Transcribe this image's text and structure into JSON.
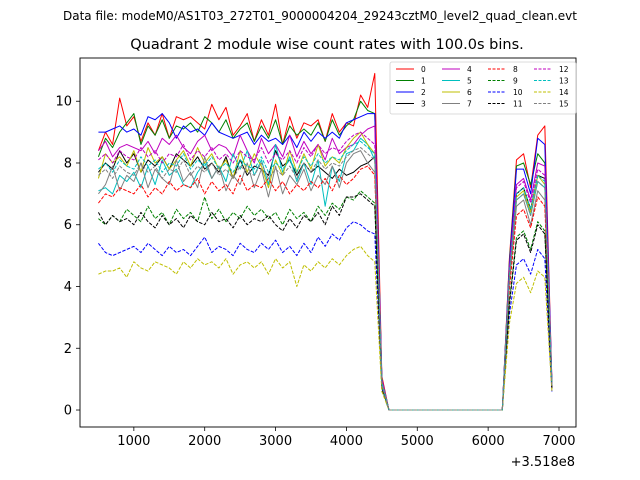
{
  "header": {
    "data_file": "Data file: modeM0/AS1T03_272T01_9000004204_29243cztM0_level2_quad_clean.evt"
  },
  "chart_data": {
    "type": "line",
    "title": "Quadrant 2 module wise count rates with 100.0s bins.",
    "xlabel": "",
    "ylabel": "",
    "x_offset_label": "+3.518e8",
    "xlim": [
      240,
      7240
    ],
    "ylim": [
      -0.55,
      11.4
    ],
    "x_ticks": [
      1000,
      2000,
      3000,
      4000,
      5000,
      6000,
      7000
    ],
    "x_tick_labels": [
      "1000",
      "2000",
      "3000",
      "4000",
      "5000",
      "6000",
      "7000"
    ],
    "y_ticks": [
      0,
      2,
      4,
      6,
      8,
      10
    ],
    "y_tick_labels": [
      "0",
      "2",
      "4",
      "6",
      "8",
      "10"
    ],
    "grid": false,
    "legend_position": "top-right",
    "legend_columns": 4,
    "x": [
      500,
      600,
      700,
      800,
      900,
      1000,
      1100,
      1200,
      1300,
      1400,
      1500,
      1600,
      1700,
      1800,
      1900,
      2000,
      2100,
      2200,
      2300,
      2400,
      2500,
      2600,
      2700,
      2800,
      2900,
      3000,
      3100,
      3200,
      3300,
      3400,
      3500,
      3600,
      3700,
      3800,
      3900,
      4000,
      4100,
      4200,
      4300,
      4400,
      4500,
      4600,
      4700,
      4800,
      4900,
      5000,
      5100,
      5200,
      5300,
      5400,
      5500,
      5600,
      5700,
      5800,
      5900,
      6000,
      6100,
      6200,
      6300,
      6400,
      6500,
      6600,
      6700,
      6800,
      6900
    ],
    "series": [
      {
        "name": "0",
        "color": "#ff0000",
        "dash": "solid",
        "values": [
          8.4,
          9.0,
          8.6,
          10.1,
          9.2,
          9.5,
          8.7,
          9.3,
          8.9,
          9.6,
          8.8,
          9.5,
          9.4,
          9.5,
          9.3,
          9.1,
          9.9,
          9.4,
          9.8,
          8.9,
          9.2,
          9.6,
          8.7,
          9.4,
          8.9,
          9.9,
          8.6,
          9.5,
          8.8,
          9.3,
          9.2,
          9.4,
          8.7,
          9.6,
          9.0,
          9.3,
          9.2,
          10.2,
          9.8,
          10.9,
          1.1,
          0,
          0,
          0,
          0,
          0,
          0,
          0,
          0,
          0,
          0,
          0,
          0,
          0,
          0,
          0,
          0,
          0,
          4.9,
          8.1,
          8.3,
          7.2,
          8.9,
          9.2,
          0.9
        ]
      },
      {
        "name": "1",
        "color": "#008000",
        "dash": "solid",
        "values": [
          8.2,
          8.8,
          8.5,
          9.0,
          9.3,
          9.6,
          8.6,
          9.2,
          8.9,
          9.4,
          8.8,
          9.2,
          9.1,
          9.3,
          9.0,
          9.5,
          9.3,
          9.0,
          9.4,
          8.8,
          9.1,
          9.3,
          8.7,
          9.2,
          8.8,
          9.4,
          8.6,
          9.2,
          8.9,
          9.1,
          8.9,
          9.3,
          8.7,
          9.4,
          8.9,
          9.2,
          9.4,
          10.0,
          9.7,
          9.6,
          1.0,
          0,
          0,
          0,
          0,
          0,
          0,
          0,
          0,
          0,
          0,
          0,
          0,
          0,
          0,
          0,
          0,
          0,
          4.8,
          7.9,
          8.0,
          7.3,
          8.3,
          8.0,
          0.8
        ]
      },
      {
        "name": "2",
        "color": "#0000ff",
        "dash": "solid",
        "values": [
          9.0,
          9.0,
          9.1,
          9.2,
          9.0,
          9.1,
          8.9,
          9.5,
          9.4,
          9.6,
          9.3,
          8.8,
          9.2,
          9.0,
          9.1,
          8.9,
          9.3,
          9.0,
          8.9,
          8.8,
          8.9,
          9.0,
          8.6,
          8.9,
          8.7,
          8.8,
          8.6,
          8.9,
          8.5,
          9.0,
          8.7,
          9.0,
          8.8,
          9.0,
          8.8,
          9.3,
          9.4,
          9.5,
          9.6,
          9.6,
          1.0,
          0,
          0,
          0,
          0,
          0,
          0,
          0,
          0,
          0,
          0,
          0,
          0,
          0,
          0,
          0,
          0,
          0,
          4.7,
          7.8,
          7.8,
          7.0,
          8.8,
          8.6,
          0.9
        ]
      },
      {
        "name": "3",
        "color": "#000000",
        "dash": "solid",
        "values": [
          7.7,
          8.0,
          7.8,
          8.4,
          8.0,
          8.3,
          7.7,
          8.1,
          7.9,
          8.2,
          7.8,
          8.3,
          8.1,
          7.9,
          8.2,
          7.8,
          8.0,
          7.7,
          8.2,
          7.5,
          8.1,
          7.6,
          7.9,
          7.8,
          7.6,
          8.4,
          7.9,
          8.1,
          7.6,
          8.0,
          7.7,
          7.9,
          7.7,
          7.5,
          7.8,
          7.6,
          7.7,
          7.9,
          8.0,
          8.2,
          0.9,
          0,
          0,
          0,
          0,
          0,
          0,
          0,
          0,
          0,
          0,
          0,
          0,
          0,
          0,
          0,
          0,
          0,
          4.4,
          7.0,
          7.2,
          6.5,
          7.6,
          7.5,
          0.8
        ]
      },
      {
        "name": "4",
        "color": "#bf00bf",
        "dash": "solid",
        "values": [
          8.4,
          8.7,
          8.2,
          8.5,
          8.6,
          8.5,
          8.4,
          8.7,
          8.3,
          8.8,
          8.6,
          8.9,
          8.5,
          8.3,
          8.7,
          8.9,
          8.4,
          8.6,
          8.5,
          8.2,
          8.9,
          8.4,
          8.0,
          8.8,
          8.3,
          8.6,
          8.2,
          8.9,
          8.2,
          8.7,
          8.3,
          8.6,
          8.1,
          8.8,
          8.3,
          8.5,
          8.6,
          8.9,
          9.1,
          9.2,
          1.0,
          0,
          0,
          0,
          0,
          0,
          0,
          0,
          0,
          0,
          0,
          0,
          0,
          0,
          0,
          0,
          0,
          0,
          4.6,
          7.3,
          7.5,
          6.8,
          8.0,
          7.9,
          0.8
        ]
      },
      {
        "name": "5",
        "color": "#00bfbf",
        "dash": "solid",
        "values": [
          7.1,
          7.2,
          7.0,
          7.6,
          7.4,
          7.7,
          7.2,
          7.9,
          7.3,
          8.1,
          7.6,
          7.8,
          7.3,
          7.2,
          7.7,
          8.0,
          7.5,
          7.9,
          7.4,
          8.3,
          7.8,
          8.4,
          7.6,
          8.1,
          7.3,
          8.6,
          7.7,
          8.2,
          7.4,
          8.0,
          7.3,
          8.1,
          6.6,
          7.9,
          7.4,
          8.3,
          8.4,
          8.8,
          8.6,
          8.1,
          0.9,
          0,
          0,
          0,
          0,
          0,
          0,
          0,
          0,
          0,
          0,
          0,
          0,
          0,
          0,
          0,
          0,
          0,
          4.3,
          6.8,
          7.0,
          6.3,
          7.4,
          7.2,
          0.8
        ]
      },
      {
        "name": "6",
        "color": "#bfbf00",
        "dash": "solid",
        "values": [
          7.5,
          8.3,
          8.0,
          8.2,
          7.9,
          8.4,
          7.7,
          8.5,
          8.0,
          8.2,
          7.8,
          8.1,
          8.4,
          7.9,
          8.5,
          8.0,
          8.3,
          7.8,
          8.1,
          7.5,
          8.4,
          7.7,
          8.3,
          7.9,
          7.2,
          8.1,
          7.6,
          8.4,
          7.7,
          8.3,
          7.8,
          8.6,
          7.9,
          8.2,
          8.0,
          8.5,
          8.8,
          9.0,
          8.6,
          8.3,
          0.9,
          0,
          0,
          0,
          0,
          0,
          0,
          0,
          0,
          0,
          0,
          0,
          0,
          0,
          0,
          0,
          0,
          0,
          4.3,
          6.9,
          7.1,
          6.4,
          7.6,
          7.3,
          0.8
        ]
      },
      {
        "name": "7",
        "color": "#808080",
        "dash": "solid",
        "values": [
          7.0,
          7.3,
          7.9,
          7.1,
          7.6,
          7.4,
          8.0,
          7.2,
          7.8,
          7.5,
          7.3,
          8.1,
          7.4,
          7.7,
          7.2,
          8.2,
          7.5,
          7.9,
          7.1,
          7.6,
          7.3,
          8.0,
          7.2,
          7.8,
          6.9,
          7.9,
          7.0,
          7.6,
          7.3,
          7.8,
          7.1,
          7.6,
          7.3,
          7.9,
          7.2,
          8.0,
          8.3,
          8.4,
          8.0,
          7.7,
          0.8,
          0,
          0,
          0,
          0,
          0,
          0,
          0,
          0,
          0,
          0,
          0,
          0,
          0,
          0,
          0,
          0,
          0,
          4.1,
          6.6,
          6.8,
          6.0,
          7.1,
          6.8,
          0.7
        ]
      },
      {
        "name": "8",
        "color": "#ff0000",
        "dash": "dashed",
        "values": [
          6.7,
          7.0,
          6.9,
          7.2,
          7.1,
          7.0,
          7.3,
          6.9,
          7.2,
          7.0,
          7.4,
          7.1,
          7.3,
          7.2,
          7.5,
          7.0,
          7.4,
          7.1,
          7.3,
          7.0,
          7.6,
          7.1,
          7.3,
          7.2,
          7.5,
          7.1,
          7.4,
          7.0,
          7.3,
          7.1,
          7.4,
          7.2,
          7.5,
          7.1,
          7.6,
          7.3,
          7.5,
          7.8,
          7.9,
          7.6,
          0.8,
          0,
          0,
          0,
          0,
          0,
          0,
          0,
          0,
          0,
          0,
          0,
          0,
          0,
          0,
          0,
          0,
          0,
          3.9,
          6.3,
          6.5,
          5.9,
          6.9,
          6.6,
          0.7
        ]
      },
      {
        "name": "9",
        "color": "#008000",
        "dash": "dashed",
        "values": [
          6.2,
          6.0,
          6.3,
          6.1,
          6.5,
          6.3,
          6.1,
          6.6,
          6.2,
          6.4,
          6.0,
          6.5,
          6.2,
          6.4,
          6.1,
          6.9,
          6.2,
          6.5,
          6.1,
          6.4,
          6.2,
          6.6,
          6.3,
          6.5,
          6.2,
          6.4,
          6.0,
          6.5,
          6.2,
          6.4,
          6.1,
          6.6,
          6.3,
          6.7,
          6.5,
          6.9,
          6.8,
          7.1,
          6.9,
          6.7,
          0.7,
          0,
          0,
          0,
          0,
          0,
          0,
          0,
          0,
          0,
          0,
          0,
          0,
          0,
          0,
          0,
          0,
          0,
          3.5,
          5.6,
          5.8,
          5.2,
          6.1,
          5.8,
          0.7
        ]
      },
      {
        "name": "10",
        "color": "#0000ff",
        "dash": "dashed",
        "values": [
          5.4,
          5.1,
          5.0,
          5.1,
          5.2,
          5.3,
          5.1,
          5.4,
          5.2,
          5.0,
          5.3,
          5.1,
          5.2,
          5.0,
          5.3,
          5.6,
          5.1,
          5.3,
          5.2,
          5.0,
          5.4,
          5.2,
          5.1,
          5.4,
          5.2,
          5.5,
          5.1,
          5.3,
          5.0,
          5.4,
          5.1,
          5.6,
          5.3,
          5.7,
          5.5,
          5.9,
          6.1,
          6.0,
          5.8,
          5.7,
          0.7,
          0,
          0,
          0,
          0,
          0,
          0,
          0,
          0,
          0,
          0,
          0,
          0,
          0,
          0,
          0,
          0,
          0,
          3.1,
          4.7,
          4.9,
          4.4,
          5.2,
          4.9,
          0.6
        ]
      },
      {
        "name": "11",
        "color": "#000000",
        "dash": "dashed",
        "values": [
          6.4,
          6.0,
          6.3,
          6.1,
          6.2,
          6.0,
          6.4,
          6.1,
          5.9,
          6.3,
          6.0,
          6.2,
          5.9,
          6.3,
          6.1,
          6.0,
          6.4,
          6.1,
          6.2,
          5.9,
          6.3,
          6.0,
          6.2,
          6.1,
          6.3,
          6.0,
          5.8,
          6.2,
          5.9,
          6.3,
          6.1,
          6.4,
          6.0,
          6.6,
          6.3,
          6.9,
          6.9,
          7.0,
          6.8,
          6.6,
          0.7,
          0,
          0,
          0,
          0,
          0,
          0,
          0,
          0,
          0,
          0,
          0,
          0,
          0,
          0,
          0,
          0,
          0,
          3.4,
          5.5,
          5.7,
          5.1,
          6.0,
          5.7,
          0.7
        ]
      },
      {
        "name": "12",
        "color": "#bf00bf",
        "dash": "dashed",
        "values": [
          8.1,
          8.3,
          8.0,
          8.4,
          8.2,
          8.1,
          8.5,
          8.2,
          8.4,
          8.0,
          8.3,
          8.2,
          8.6,
          8.1,
          8.4,
          8.2,
          8.5,
          8.1,
          8.3,
          8.0,
          8.4,
          8.2,
          8.1,
          8.5,
          8.0,
          8.3,
          8.1,
          8.4,
          8.0,
          8.5,
          8.2,
          8.6,
          8.3,
          8.5,
          8.4,
          8.7,
          8.9,
          9.0,
          8.8,
          8.6,
          0.9,
          0,
          0,
          0,
          0,
          0,
          0,
          0,
          0,
          0,
          0,
          0,
          0,
          0,
          0,
          0,
          0,
          0,
          4.5,
          7.2,
          7.4,
          6.7,
          7.8,
          7.6,
          0.8
        ]
      },
      {
        "name": "13",
        "color": "#00bfbf",
        "dash": "dashed",
        "values": [
          7.8,
          8.0,
          7.7,
          8.1,
          7.9,
          7.8,
          8.2,
          7.9,
          8.1,
          7.7,
          8.0,
          7.9,
          8.3,
          7.8,
          8.1,
          7.9,
          8.2,
          7.8,
          8.0,
          7.7,
          8.1,
          7.9,
          7.8,
          8.2,
          7.7,
          8.0,
          7.8,
          8.1,
          7.7,
          8.2,
          7.9,
          8.3,
          8.0,
          8.2,
          8.1,
          8.4,
          8.6,
          8.7,
          8.5,
          8.3,
          0.9,
          0,
          0,
          0,
          0,
          0,
          0,
          0,
          0,
          0,
          0,
          0,
          0,
          0,
          0,
          0,
          0,
          0,
          4.4,
          7.0,
          7.2,
          6.5,
          7.6,
          7.4,
          0.8
        ]
      },
      {
        "name": "14",
        "color": "#bfbf00",
        "dash": "dashed",
        "values": [
          4.4,
          4.5,
          4.5,
          4.6,
          4.3,
          4.8,
          4.6,
          4.5,
          4.8,
          4.7,
          4.6,
          4.4,
          4.8,
          4.6,
          4.9,
          4.7,
          4.8,
          4.6,
          4.9,
          4.4,
          4.7,
          4.8,
          4.6,
          4.8,
          4.4,
          4.9,
          4.6,
          4.8,
          4.0,
          4.7,
          4.5,
          4.8,
          4.6,
          4.9,
          4.7,
          5.0,
          5.2,
          5.3,
          5.0,
          4.8,
          0.6,
          0,
          0,
          0,
          0,
          0,
          0,
          0,
          0,
          0,
          0,
          0,
          0,
          0,
          0,
          0,
          0,
          0,
          2.8,
          4.1,
          4.3,
          3.8,
          4.5,
          4.3,
          0.6
        ]
      },
      {
        "name": "15",
        "color": "#808080",
        "dash": "dashed",
        "values": [
          7.6,
          7.8,
          7.5,
          7.9,
          7.7,
          7.6,
          8.0,
          7.7,
          7.9,
          7.5,
          7.8,
          7.7,
          8.1,
          7.6,
          7.9,
          7.7,
          8.0,
          7.6,
          7.8,
          7.5,
          7.9,
          7.7,
          7.6,
          8.0,
          7.5,
          7.8,
          7.6,
          7.9,
          7.5,
          8.0,
          7.7,
          8.1,
          7.8,
          8.0,
          7.9,
          8.2,
          8.4,
          8.5,
          8.3,
          8.1,
          0.8,
          0,
          0,
          0,
          0,
          0,
          0,
          0,
          0,
          0,
          0,
          0,
          0,
          0,
          0,
          0,
          0,
          0,
          4.2,
          6.8,
          7.0,
          6.3,
          7.4,
          7.2,
          0.8
        ]
      }
    ]
  }
}
